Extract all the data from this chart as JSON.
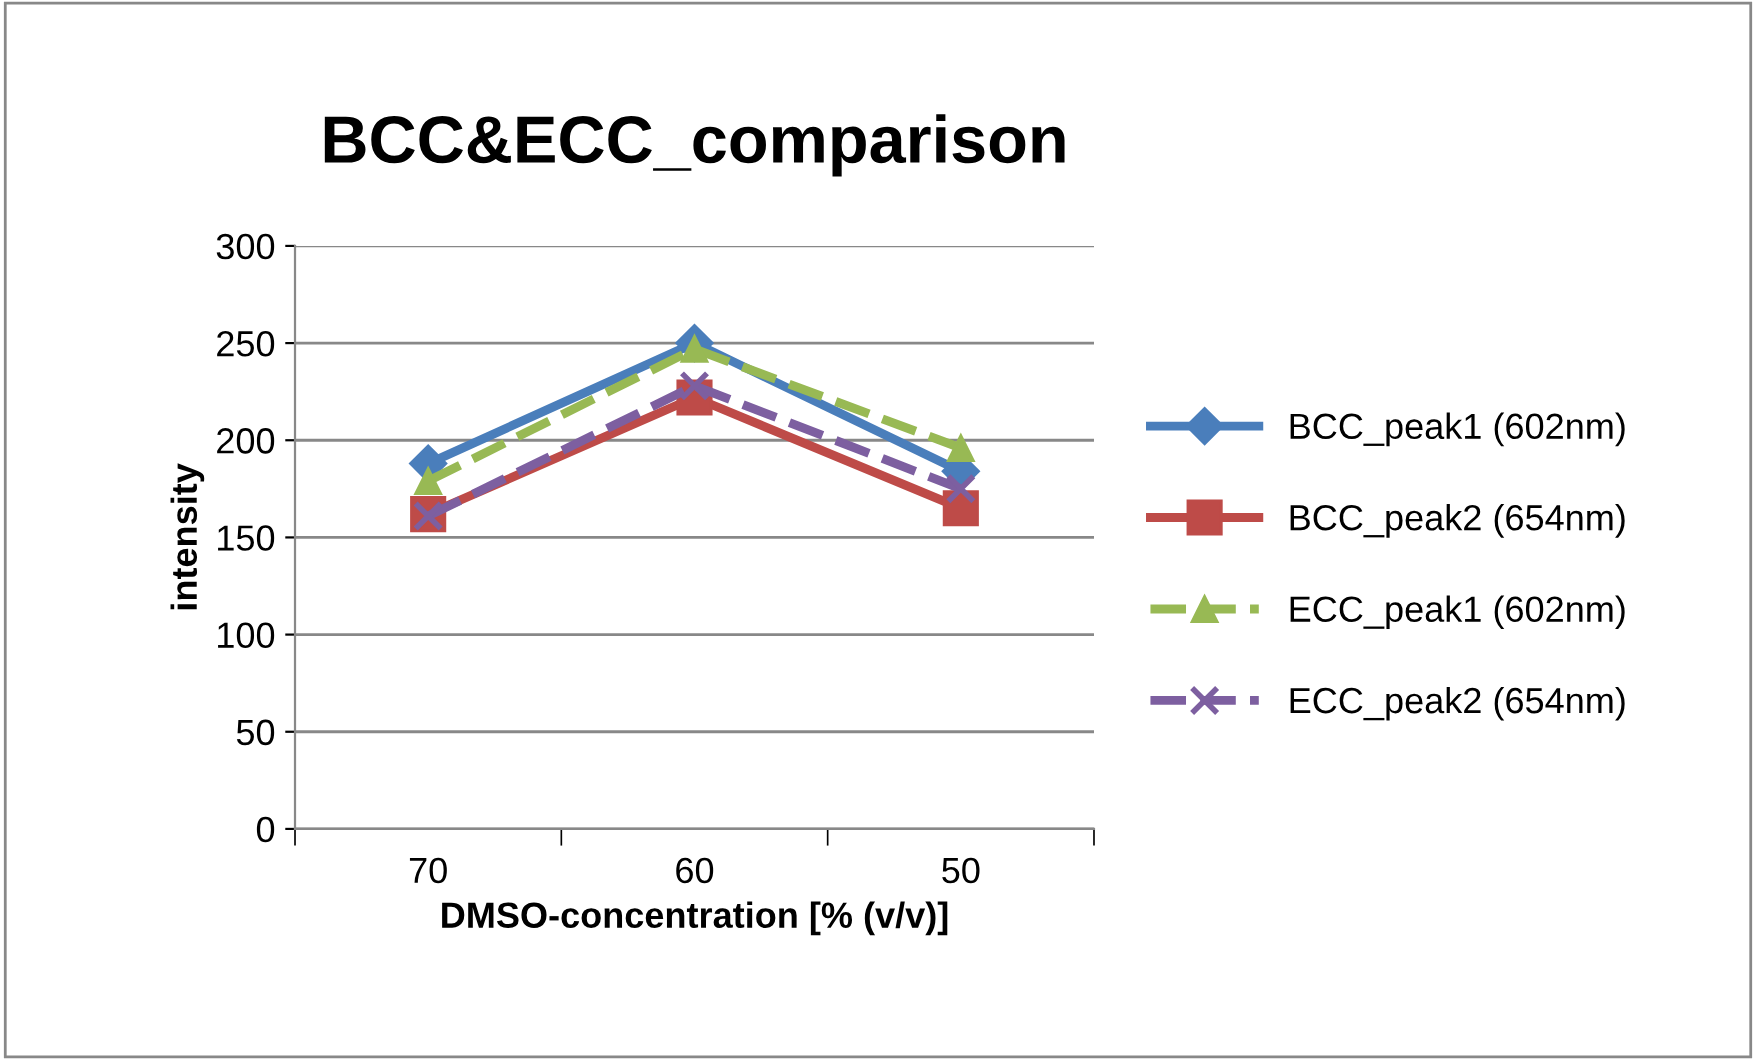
{
  "chart_data": {
    "type": "line",
    "title": "BCC&ECC_comparison",
    "xlabel": "DMSO-concentration [% (v/v)]",
    "ylabel": "intensity",
    "categories": [
      "70",
      "60",
      "50"
    ],
    "series": [
      {
        "name": "BCC_peak1 (602nm)",
        "color": "#4a7ebb",
        "values": [
          188,
          250,
          184
        ],
        "marker": "diamond",
        "line_style": "solid"
      },
      {
        "name": "BCC_peak2 (654nm)",
        "color": "#be4b48",
        "values": [
          162,
          222,
          165
        ],
        "marker": "square",
        "line_style": "solid"
      },
      {
        "name": "ECC_peak1 (602nm)",
        "color": "#98b954",
        "values": [
          179,
          247,
          196
        ],
        "marker": "triangle",
        "line_style": "dashed"
      },
      {
        "name": "ECC_peak2 (654nm)",
        "color": "#7d5fa0",
        "values": [
          161,
          228,
          175
        ],
        "marker": "cross",
        "line_style": "dashed"
      }
    ],
    "ylim": [
      0,
      300
    ],
    "yticks": [
      0,
      50,
      100,
      150,
      200,
      250,
      300
    ],
    "grid": "y",
    "legend": "right"
  }
}
